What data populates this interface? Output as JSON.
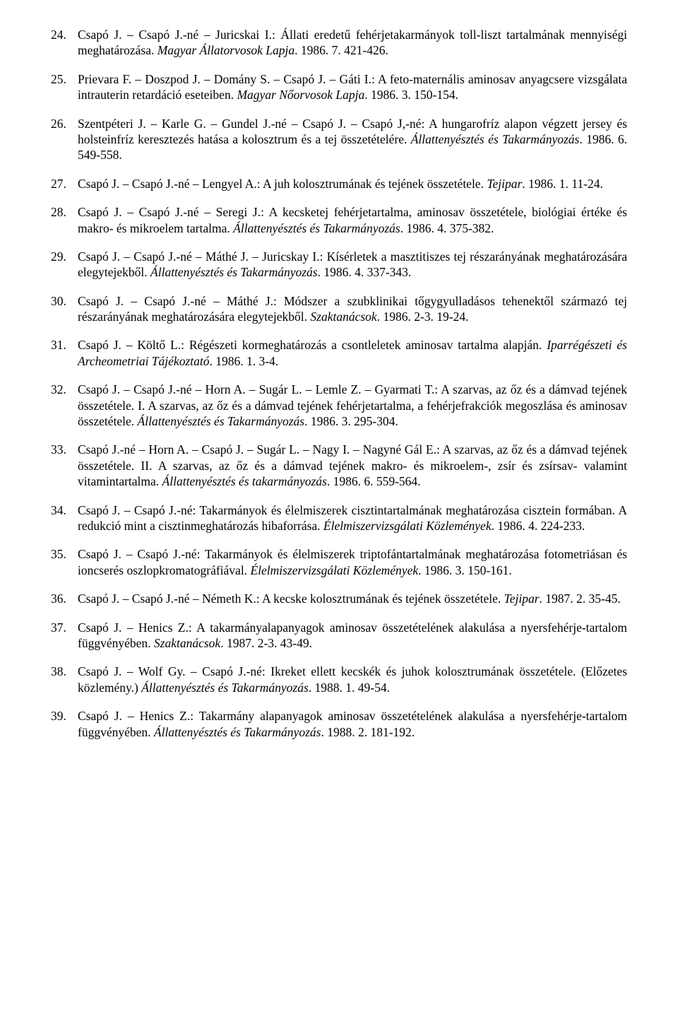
{
  "references": [
    {
      "n": "24.",
      "html": "Csapó J. – Csapó J.-né – Juricskai I.: Állati eredetű fehérjetakarmányok toll-liszt tartalmának mennyiségi meghatározása. <span class=\"ital\">Magyar Állatorvosok Lapja</span>. 1986. 7. 421-426."
    },
    {
      "n": "25.",
      "html": "Prievara F. – Doszpod J. – Domány S. – Csapó J. – Gáti I.: A feto-maternális aminosav anyagcsere vizsgálata intrauterin retardáció eseteiben. <span class=\"ital\">Magyar Nőorvosok Lapja</span>. 1986. 3. 150-154."
    },
    {
      "n": "26.",
      "html": "Szentpéteri J. – Karle G. – Gundel J.-né – Csapó J. – Csapó J,-né: A hungarofríz alapon végzett jersey és holsteinfríz keresztezés hatása a kolosztrum és a tej összetételére. <span class=\"ital\">Állattenyésztés és Takarmányozás</span>. 1986. 6. 549-558."
    },
    {
      "n": "27.",
      "html": "Csapó J. – Csapó J.-né – Lengyel A.: A juh kolosztrumának és tejének összetétele. <span class=\"ital\">Tejipar</span>. 1986. 1. 11-24."
    },
    {
      "n": "28.",
      "html": "Csapó J. – Csapó J.-né – Seregi J.: A kecsketej fehérjetartalma, aminosav összetétele, biológiai értéke és makro- és mikroelem tartalma. <span class=\"ital\">Állattenyésztés és Takarmányozás</span>. 1986. 4. 375-382."
    },
    {
      "n": "29.",
      "html": "Csapó J. – Csapó J.-né – Máthé J. – Juricskay I.: Kísérletek a masztitiszes tej részarányának meghatározására elegytejekből. <span class=\"ital\">Állattenyésztés és Takarmányozás</span>. 1986. 4. 337-343."
    },
    {
      "n": "30.",
      "html": "Csapó J. – Csapó J.-né – Máthé J.: Módszer a szubklinikai tőgygyulladásos tehenektől származó tej részarányának meghatározására elegytejekből. <span class=\"ital\">Szaktanácsok</span>. 1986. 2-3. 19-24."
    },
    {
      "n": "31.",
      "html": "Csapó J. – Költő L.: Régészeti kormeghatározás a csontleletek aminosav tartalma alapján. <span class=\"ital\">Iparrégészeti és Archeometriai Tájékoztató</span>. 1986. 1. 3-4."
    },
    {
      "n": "32.",
      "html": "Csapó J. – Csapó J.-né – Horn A. – Sugár L. – Lemle Z. – Gyarmati T.: A szarvas, az őz és a dámvad tejének összetétele. I. A szarvas, az őz és a dámvad tejének fehérjetartalma, a fehérjefrakciók megoszlása és aminosav összetétele. <span class=\"ital\">Állattenyésztés és Takarmányozás</span>. 1986. 3. 295-304."
    },
    {
      "n": "33.",
      "html": "Csapó J.-né – Horn A. – Csapó J. – Sugár L. – Nagy I. – Nagyné Gál E.: A szarvas, az őz és a dámvad tejének összetétele. II. A szarvas, az őz és a dámvad tejének makro- és mikroelem-, zsír és zsírsav- valamint vitamintartalma. <span class=\"ital\">Állattenyésztés és takarmányozás</span>. 1986. 6. 559-564."
    },
    {
      "n": "34.",
      "html": "Csapó J. – Csapó J.-né: Takarmányok és élelmiszerek cisztintartalmának meghatározása cisztein formában. A redukció mint a cisztinmeghatározás hibaforrása. <span class=\"ital\">Élelmiszervizsgálati Közlemények</span>. 1986. 4. 224-233."
    },
    {
      "n": "35.",
      "html": "Csapó J. – Csapó J.-né: Takarmányok és élelmiszerek triptofántartalmának meghatározása fotometriásan és ioncserés oszlopkromatográfiával. <span class=\"ital\">Élelmiszervizsgálati Közlemények</span>. 1986. 3. 150-161."
    },
    {
      "n": "36.",
      "html": "Csapó J. – Csapó J.-né – Németh K.: A kecske kolosztrumának és tejének összetétele. <span class=\"ital\">Tejipar</span>. 1987. 2. 35-45."
    },
    {
      "n": "37.",
      "html": "Csapó J. – Henics Z.: A takarmányalapanyagok aminosav összetételének alakulása a nyersfehérje-tartalom függvényében. <span class=\"ital\">Szaktanácsok</span>. 1987. 2-3. 43-49."
    },
    {
      "n": "38.",
      "html": "Csapó J. – Wolf Gy. – Csapó J.-né: Ikreket ellett kecskék és juhok kolosztrumának összetétele. (Előzetes közlemény.) <span class=\"ital\">Állattenyésztés és Takarmányozás</span>. 1988. 1. 49-54."
    },
    {
      "n": "39.",
      "html": "Csapó J. – Henics Z.: Takarmány alapanyagok aminosav összetételének alakulása a nyersfehérje-tartalom függvényében. <span class=\"ital\">Állattenyésztés és Takarmányozás</span>. 1988. 2. 181-192."
    }
  ]
}
